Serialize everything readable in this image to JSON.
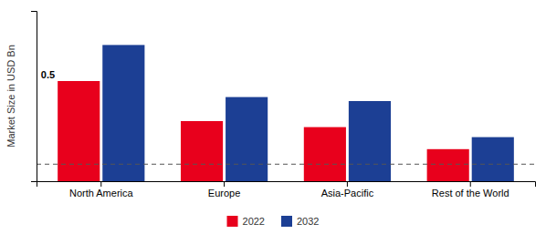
{
  "chart_data": {
    "type": "bar",
    "categories": [
      "North America",
      "Europe",
      "Asia-Pacific",
      "Rest of the World"
    ],
    "series": [
      {
        "name": "2022",
        "color": "#e8001c",
        "values": [
          0.5,
          0.3,
          0.27,
          0.16
        ]
      },
      {
        "name": "2032",
        "color": "#1c3f94",
        "values": [
          0.68,
          0.42,
          0.4,
          0.22
        ]
      }
    ],
    "y_label": "Market Size in USD Bn",
    "ylim": [
      0,
      0.85
    ],
    "yticks": [],
    "tick_labels": "x",
    "reference_line": 0.085,
    "annotations": [
      {
        "text": "0.5",
        "x": "North America",
        "y": 0.5
      }
    ],
    "legend": "bottom",
    "grid": false
  }
}
